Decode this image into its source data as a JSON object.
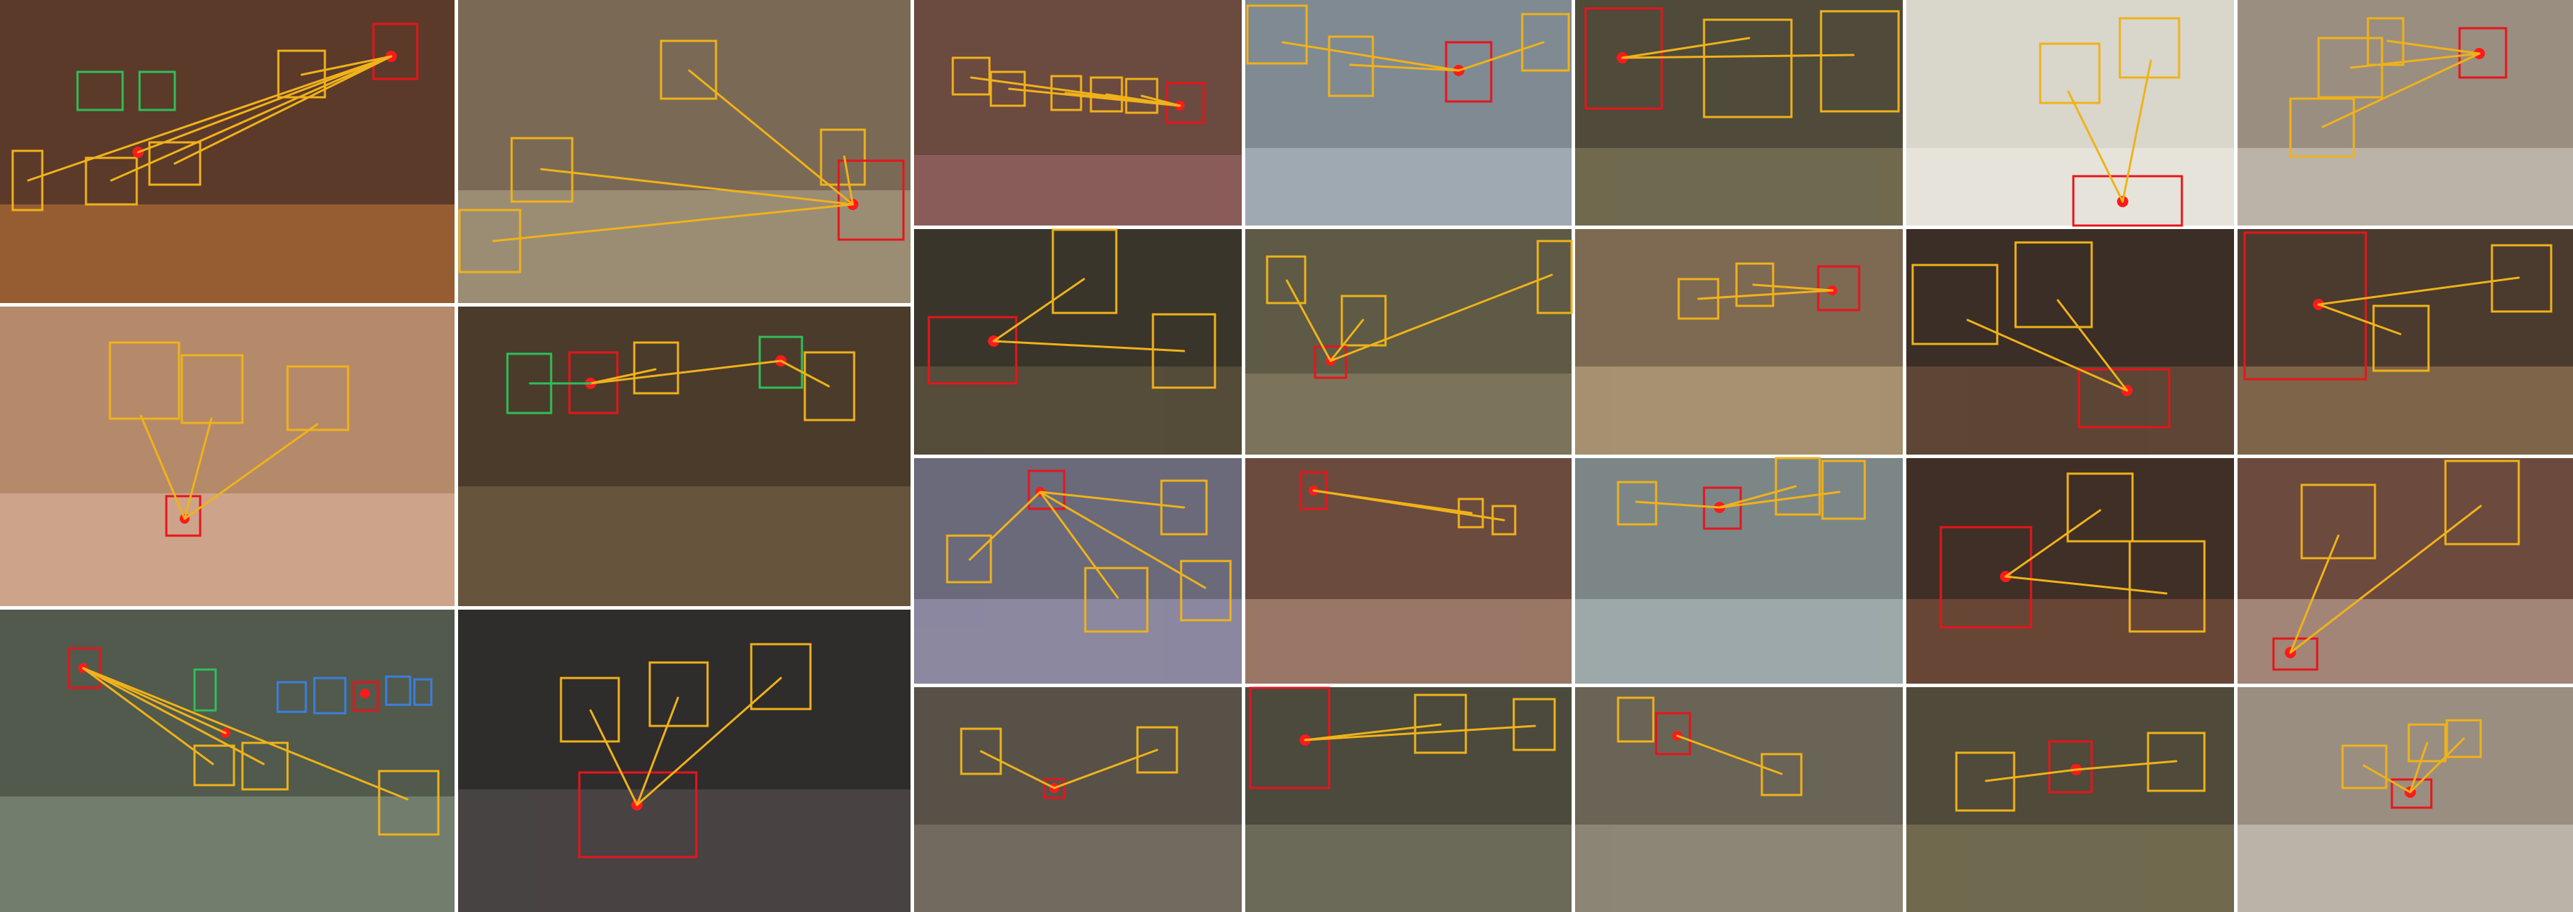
{
  "colors": {
    "target": "#e8141b",
    "box": "#f0b21a",
    "line": "#f0b21a",
    "green": "#2fbf5a",
    "blue": "#3b7fe0",
    "point": "#ff1a1a"
  },
  "scenes": [
    {
      "id": "tile-1",
      "bg": "#5b3a2a",
      "accent": "#c77a3a"
    },
    {
      "id": "tile-2",
      "bg": "#7a6a55",
      "accent": "#b7a88e"
    },
    {
      "id": "tile-3",
      "bg": "#6b4a40",
      "accent": "#a36b6f"
    },
    {
      "id": "tile-4",
      "bg": "#7f8a93",
      "accent": "#b9c3cc"
    },
    {
      "id": "tile-5",
      "bg": "#4f4a3a",
      "accent": "#8b8460"
    },
    {
      "id": "tile-6",
      "bg": "#d9d6cc",
      "accent": "#f1efe6"
    },
    {
      "id": "tile-7",
      "bg": "#9a8e80",
      "accent": "#d8d2c8"
    },
    {
      "id": "tile-8",
      "bg": "#b48a6a",
      "accent": "#e2b8a4"
    },
    {
      "id": "tile-9",
      "bg": "#4b3b2b",
      "accent": "#7e6a4a"
    },
    {
      "id": "tile-10",
      "bg": "#3a352b",
      "accent": "#6b5e46"
    },
    {
      "id": "tile-11",
      "bg": "#5e5a45",
      "accent": "#948b6c"
    },
    {
      "id": "tile-12",
      "bg": "#7e6a52",
      "accent": "#c8b08a"
    },
    {
      "id": "tile-13",
      "bg": "#3a2e26",
      "accent": "#7a5a44"
    },
    {
      "id": "tile-14",
      "bg": "#4a3b2e",
      "accent": "#a9865e"
    },
    {
      "id": "tile-15",
      "bg": "#515a4c",
      "accent": "#8e9b88"
    },
    {
      "id": "tile-16",
      "bg": "#2f2c2c",
      "accent": "#5d5656"
    },
    {
      "id": "tile-17",
      "bg": "#6a6a7a",
      "accent": "#a6a0bf"
    },
    {
      "id": "tile-18",
      "bg": "#6b4b3e",
      "accent": "#c19a86"
    },
    {
      "id": "tile-19",
      "bg": "#7c8687",
      "accent": "#b8c4c6"
    },
    {
      "id": "tile-20",
      "bg": "#3f2f26",
      "accent": "#8a5a44"
    },
    {
      "id": "tile-21",
      "bg": "#6c4a3d",
      "accent": "#d0b6a7"
    },
    {
      "id": "tile-22",
      "bg": "#575148",
      "accent": "#8b8073"
    },
    {
      "id": "tile-23",
      "bg": "#4b4a3c",
      "accent": "#86836f"
    },
    {
      "id": "tile-24",
      "bg": "#6a6456",
      "accent": "#a9a18f"
    }
  ]
}
